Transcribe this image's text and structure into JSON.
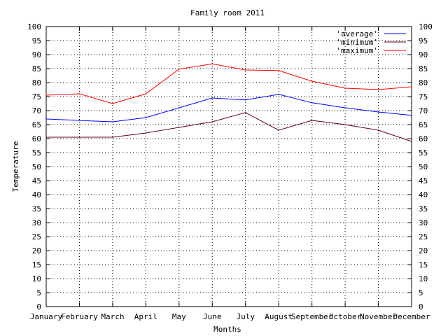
{
  "chart_data": {
    "type": "line",
    "title": "Family room 2011",
    "xlabel": "Months",
    "ylabel": "Temperature",
    "categories": [
      "January",
      "February",
      "March",
      "April",
      "May",
      "June",
      "July",
      "August",
      "September",
      "October",
      "November",
      "December"
    ],
    "ylim": [
      0,
      100
    ],
    "ytick_step": 5,
    "y2_axis_mirrored": true,
    "grid": true,
    "legend_position": "top-right",
    "series": [
      {
        "name": "'average'",
        "color": "#0000ff",
        "values": [
          67.0,
          66.5,
          66.0,
          67.5,
          71.0,
          74.5,
          73.8,
          75.8,
          72.8,
          71.0,
          69.5,
          68.3
        ]
      },
      {
        "name": "'minimum'",
        "color": "#5a0028",
        "values": [
          60.5,
          60.5,
          60.5,
          62.0,
          64.0,
          66.0,
          69.3,
          63.0,
          66.5,
          65.0,
          63.0,
          59.0
        ]
      },
      {
        "name": "'maximum'",
        "color": "#ff0000",
        "values": [
          75.5,
          76.0,
          72.5,
          76.0,
          84.8,
          86.7,
          84.5,
          84.3,
          80.5,
          78.0,
          77.5,
          78.5
        ]
      }
    ]
  }
}
